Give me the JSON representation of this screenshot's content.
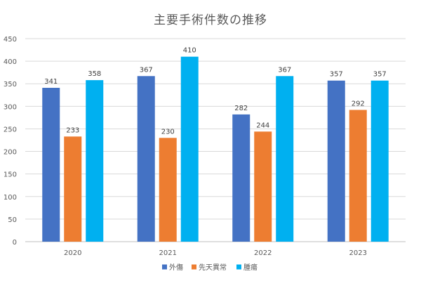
{
  "chart_data": {
    "type": "bar",
    "title": "主要手術件数の推移",
    "xlabel": "",
    "ylabel": "",
    "ylim": [
      0,
      450
    ],
    "yticks": [
      0,
      50,
      100,
      150,
      200,
      250,
      300,
      350,
      400,
      450
    ],
    "grid": true,
    "legend_position": "bottom",
    "categories": [
      "2020",
      "2021",
      "2022",
      "2023"
    ],
    "series": [
      {
        "name": "外傷",
        "color": "#4472C4",
        "values": [
          341,
          367,
          282,
          357
        ]
      },
      {
        "name": "先天異常",
        "color": "#ED7D31",
        "values": [
          233,
          230,
          244,
          292
        ]
      },
      {
        "name": "腫瘍",
        "color": "#00B0F0",
        "values": [
          358,
          410,
          367,
          357
        ]
      }
    ]
  }
}
